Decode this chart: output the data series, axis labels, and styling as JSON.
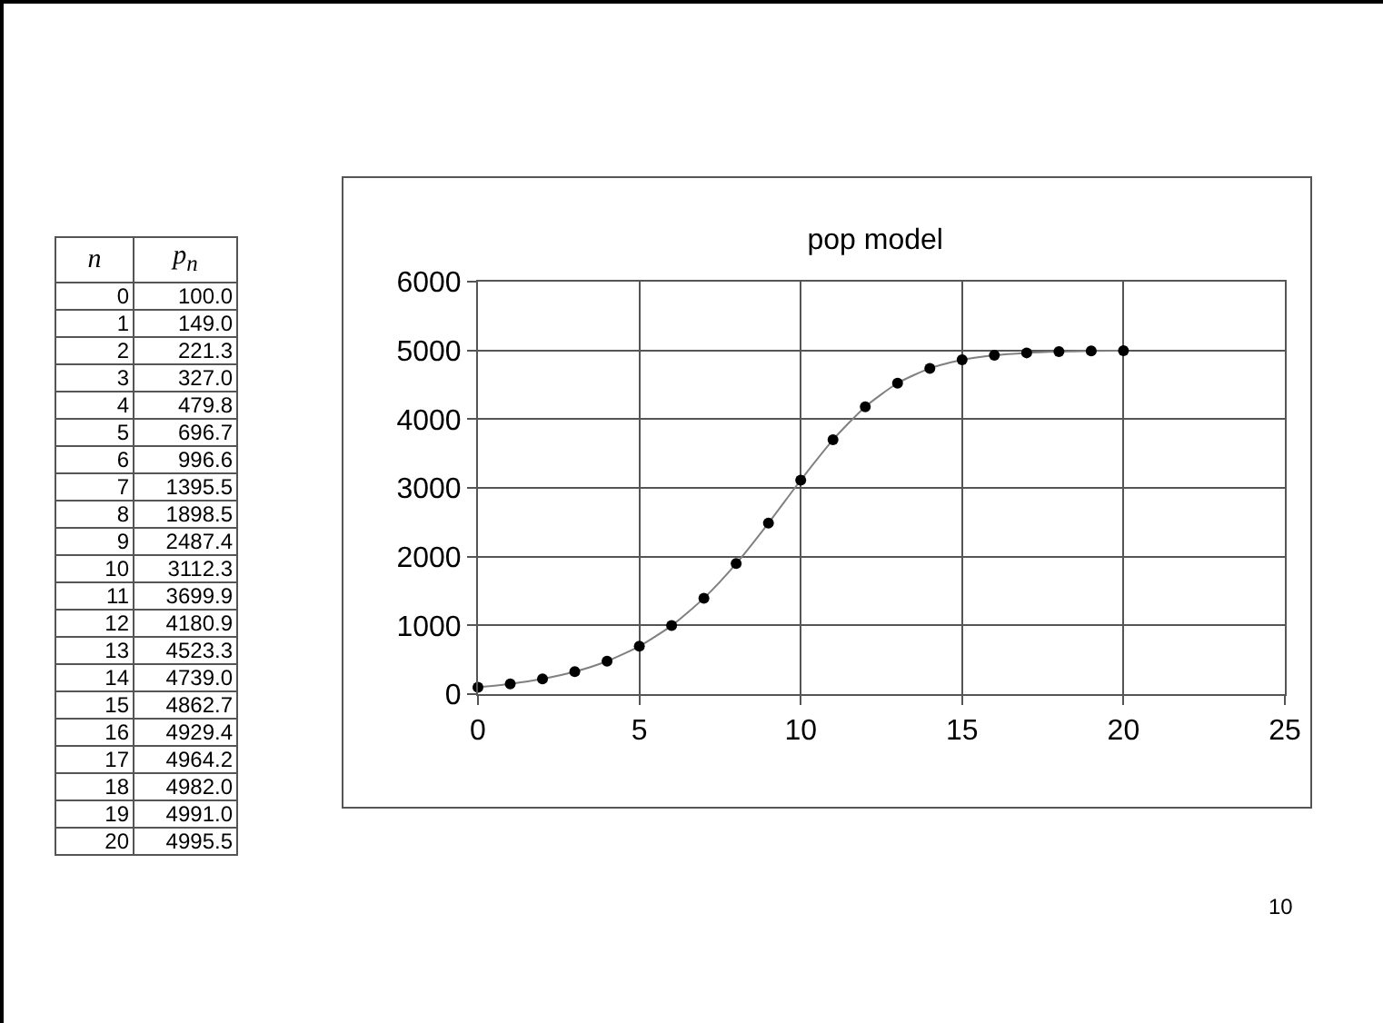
{
  "chart_data": [
    {
      "type": "heatmap",
      "ylabel": "n",
      "categories": [
        "p$_{n}$"
      ],
      "y_categories": [
        "0",
        "1",
        "2",
        "3",
        "4",
        "5",
        "6",
        "7",
        "8",
        "9",
        "10",
        "11",
        "12",
        "13",
        "14",
        "15",
        "16",
        "17",
        "18",
        "19",
        "20"
      ],
      "cells": [
        [
          100.0
        ],
        [
          149.0
        ],
        [
          221.3
        ],
        [
          327.0
        ],
        [
          479.8
        ],
        [
          696.7
        ],
        [
          996.6
        ],
        [
          1395.5
        ],
        [
          1898.5
        ],
        [
          2487.4
        ],
        [
          3112.3
        ],
        [
          3699.9
        ],
        [
          4180.9
        ],
        [
          4523.3
        ],
        [
          4739.0
        ],
        [
          4862.7
        ],
        [
          4929.4
        ],
        [
          4964.2
        ],
        [
          4982.0
        ],
        [
          4991.0
        ],
        [
          4995.5
        ]
      ],
      "cell_labels": [
        [
          "100.0"
        ],
        [
          "149.0"
        ],
        [
          "221.3"
        ],
        [
          "327.0"
        ],
        [
          "479.8"
        ],
        [
          "696.7"
        ],
        [
          "996.6"
        ],
        [
          "1395.5"
        ],
        [
          "1898.5"
        ],
        [
          "2487.4"
        ],
        [
          "3112.3"
        ],
        [
          "3699.9"
        ],
        [
          "4180.9"
        ],
        [
          "4523.3"
        ],
        [
          "4739.0"
        ],
        [
          "4862.7"
        ],
        [
          "4929.4"
        ],
        [
          "4964.2"
        ],
        [
          "4982.0"
        ],
        [
          "4991.0"
        ],
        [
          "4995.5"
        ]
      ]
    },
    {
      "type": "line",
      "title": "pop model",
      "x": [
        0,
        1,
        2,
        3,
        4,
        5,
        6,
        7,
        8,
        9,
        10,
        11,
        12,
        13,
        14,
        15,
        16,
        17,
        18,
        19,
        20
      ],
      "series": [
        {
          "color": "#000000",
          "values": [
            100.0,
            149.0,
            221.3,
            327.0,
            479.8,
            696.7,
            996.6,
            1395.5,
            1898.5,
            2487.4,
            3112.3,
            3699.9,
            4180.9,
            4523.3,
            4739.0,
            4862.7,
            4929.4,
            4964.2,
            4982.0,
            4991.0,
            4995.5
          ]
        }
      ],
      "xlim": [
        0,
        25
      ],
      "xticks": [
        0,
        5,
        10,
        15,
        20,
        25
      ],
      "ylim": [
        0,
        6000
      ],
      "yticks": [
        0,
        1000,
        2000,
        3000,
        4000,
        5000,
        6000
      ],
      "grid": true,
      "marker": "circle",
      "line_style": "solid",
      "annotations": [
        "10"
      ]
    }
  ]
}
